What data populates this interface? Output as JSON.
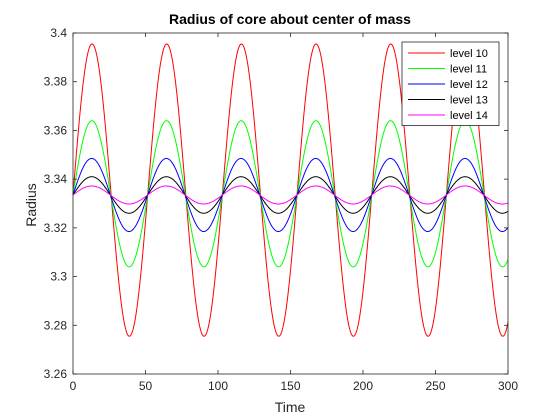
{
  "chart_data": {
    "type": "line",
    "title": "Radius of core about center of mass",
    "xlabel": "Time",
    "ylabel": "Radius",
    "xlim": [
      0,
      300
    ],
    "ylim": [
      3.26,
      3.4
    ],
    "xticks": [
      0,
      50,
      100,
      150,
      200,
      250,
      300
    ],
    "yticks": [
      3.26,
      3.28,
      3.3,
      3.32,
      3.34,
      3.36,
      3.38,
      3.4
    ],
    "xtick_labels": [
      "0",
      "50",
      "100",
      "150",
      "200",
      "250",
      "300"
    ],
    "ytick_labels": [
      "3.26",
      "3.28",
      "3.3",
      "3.32",
      "3.34",
      "3.36",
      "3.38",
      "3.4"
    ],
    "grid": false,
    "legend_position": "top-right",
    "period": 51.5,
    "start_value": 3.3335,
    "series": [
      {
        "name": "level 10",
        "color": "#ff0000",
        "mean": 3.3355,
        "amplitude": 0.06
      },
      {
        "name": "level 11",
        "color": "#00ff00",
        "mean": 3.334,
        "amplitude": 0.03
      },
      {
        "name": "level 12",
        "color": "#0000ff",
        "mean": 3.3335,
        "amplitude": 0.015
      },
      {
        "name": "level 13",
        "color": "#000000",
        "mean": 3.3335,
        "amplitude": 0.0075
      },
      {
        "name": "level 14",
        "color": "#ff00ff",
        "mean": 3.3335,
        "amplitude": 0.0037
      }
    ]
  }
}
